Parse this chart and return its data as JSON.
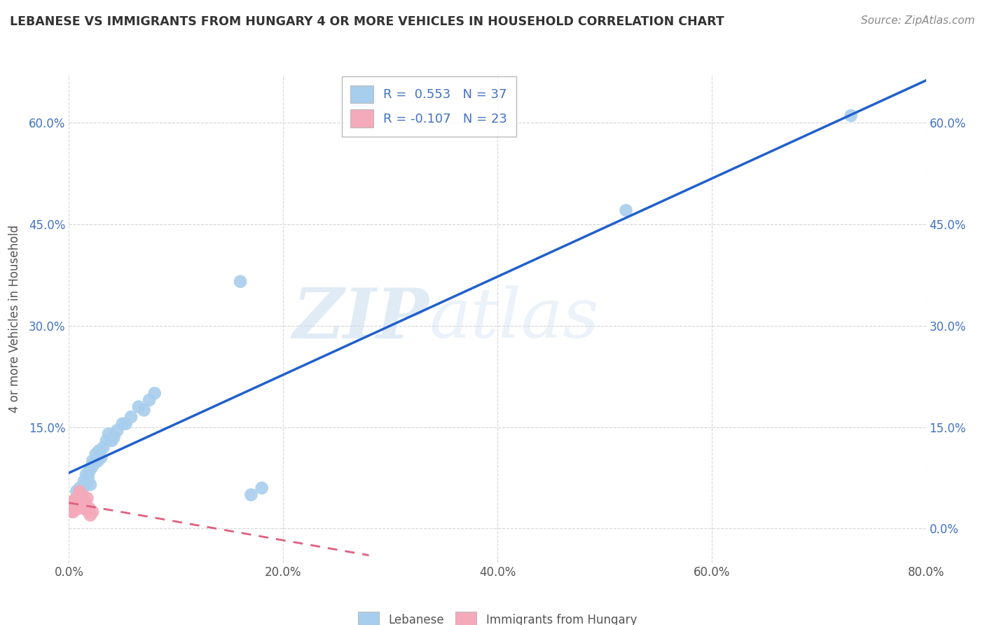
{
  "title": "LEBANESE VS IMMIGRANTS FROM HUNGARY 4 OR MORE VEHICLES IN HOUSEHOLD CORRELATION CHART",
  "source": "Source: ZipAtlas.com",
  "ylabel": "4 or more Vehicles in Household",
  "x_ticks": [
    "0.0%",
    "20.0%",
    "40.0%",
    "60.0%",
    "80.0%"
  ],
  "y_ticks_left": [
    "",
    "15.0%",
    "30.0%",
    "45.0%",
    "60.0%"
  ],
  "y_ticks_right": [
    "0.0%",
    "15.0%",
    "30.0%",
    "45.0%",
    "60.0%"
  ],
  "xlim": [
    0.0,
    0.8
  ],
  "ylim": [
    -0.05,
    0.67
  ],
  "legend_entry1": "R =  0.553   N = 37",
  "legend_entry2": "R = -0.107   N = 23",
  "legend_label1": "Lebanese",
  "legend_label2": "Immigrants from Hungary",
  "blue_color": "#A8CEED",
  "pink_color": "#F4AABB",
  "blue_line_color": "#2060CC",
  "pink_line_color": "#E06080",
  "watermark_zip": "ZIP",
  "watermark_atlas": "atlas",
  "background_color": "#FFFFFF",
  "plot_bg_color": "#FFFFFF",
  "grid_color": "#CCCCCC",
  "blue_scatter_x": [
    0.005,
    0.007,
    0.01,
    0.012,
    0.013,
    0.014,
    0.015,
    0.016,
    0.017,
    0.018,
    0.019,
    0.02,
    0.021,
    0.022,
    0.023,
    0.025,
    0.027,
    0.028,
    0.03,
    0.032,
    0.035,
    0.037,
    0.04,
    0.042,
    0.045,
    0.05,
    0.053,
    0.058,
    0.065,
    0.07,
    0.075,
    0.08,
    0.16,
    0.17,
    0.18,
    0.52,
    0.73
  ],
  "blue_scatter_y": [
    0.04,
    0.055,
    0.06,
    0.05,
    0.06,
    0.07,
    0.065,
    0.08,
    0.07,
    0.075,
    0.085,
    0.065,
    0.09,
    0.1,
    0.095,
    0.11,
    0.1,
    0.115,
    0.105,
    0.12,
    0.13,
    0.14,
    0.13,
    0.135,
    0.145,
    0.155,
    0.155,
    0.165,
    0.18,
    0.175,
    0.19,
    0.2,
    0.365,
    0.05,
    0.06,
    0.47,
    0.61
  ],
  "pink_scatter_x": [
    0.002,
    0.003,
    0.003,
    0.004,
    0.005,
    0.005,
    0.006,
    0.007,
    0.008,
    0.009,
    0.01,
    0.01,
    0.011,
    0.012,
    0.013,
    0.014,
    0.015,
    0.016,
    0.017,
    0.018,
    0.019,
    0.02,
    0.022
  ],
  "pink_scatter_y": [
    0.03,
    0.025,
    0.04,
    0.025,
    0.03,
    0.04,
    0.035,
    0.045,
    0.04,
    0.03,
    0.045,
    0.055,
    0.04,
    0.05,
    0.035,
    0.03,
    0.04,
    0.03,
    0.045,
    0.025,
    0.03,
    0.02,
    0.025
  ]
}
